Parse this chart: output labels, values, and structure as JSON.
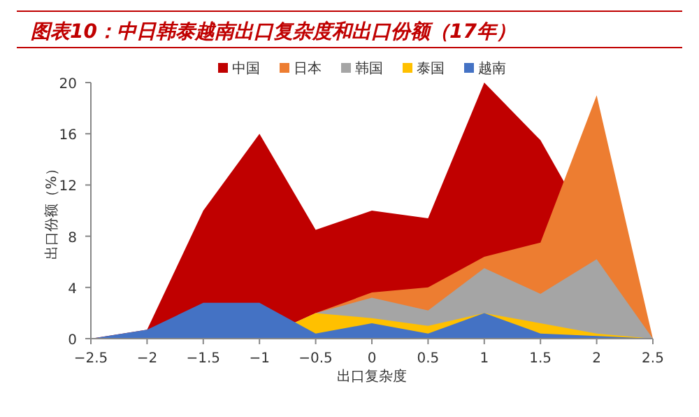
{
  "chart_data": {
    "type": "area",
    "title": "图表10：中日韩泰越南出口复杂度和出口份额（17年）",
    "xlabel": "出口复杂度",
    "ylabel": "出口份额（%）",
    "x": [
      -2.5,
      -2,
      -1.5,
      -1,
      -0.5,
      0,
      0.5,
      1,
      1.5,
      2,
      2.5
    ],
    "series": [
      {
        "name": "中国",
        "color": "#c00000",
        "values": [
          0,
          0.7,
          10,
          16,
          8.5,
          10,
          9.4,
          20,
          15.5,
          null,
          0
        ]
      },
      {
        "name": "日本",
        "color": "#ed7d31",
        "values": [
          0,
          0,
          0,
          0,
          2,
          3.6,
          4,
          6.4,
          7.5,
          19,
          0
        ]
      },
      {
        "name": "韩国",
        "color": "#a5a5a5",
        "values": [
          0,
          0,
          0,
          0,
          2,
          3.2,
          2.2,
          5.5,
          3.5,
          6.2,
          0
        ]
      },
      {
        "name": "泰国",
        "color": "#ffc000",
        "values": [
          0,
          0,
          0,
          0,
          2,
          1.6,
          1,
          2,
          1.2,
          0.4,
          0
        ]
      },
      {
        "name": "越南",
        "color": "#4472c4",
        "values": [
          0,
          0.7,
          2.8,
          2.8,
          0.4,
          1.2,
          0.4,
          2,
          0.4,
          0.2,
          0
        ]
      }
    ],
    "xlim": [
      -2.5,
      2.5
    ],
    "ylim": [
      0,
      20
    ],
    "xticks": [
      -2.5,
      -2,
      -1.5,
      -1,
      -0.5,
      0,
      0.5,
      1,
      1.5,
      2,
      2.5
    ],
    "yticks": [
      0,
      4,
      8,
      12,
      16,
      20
    ],
    "legend": "top"
  }
}
